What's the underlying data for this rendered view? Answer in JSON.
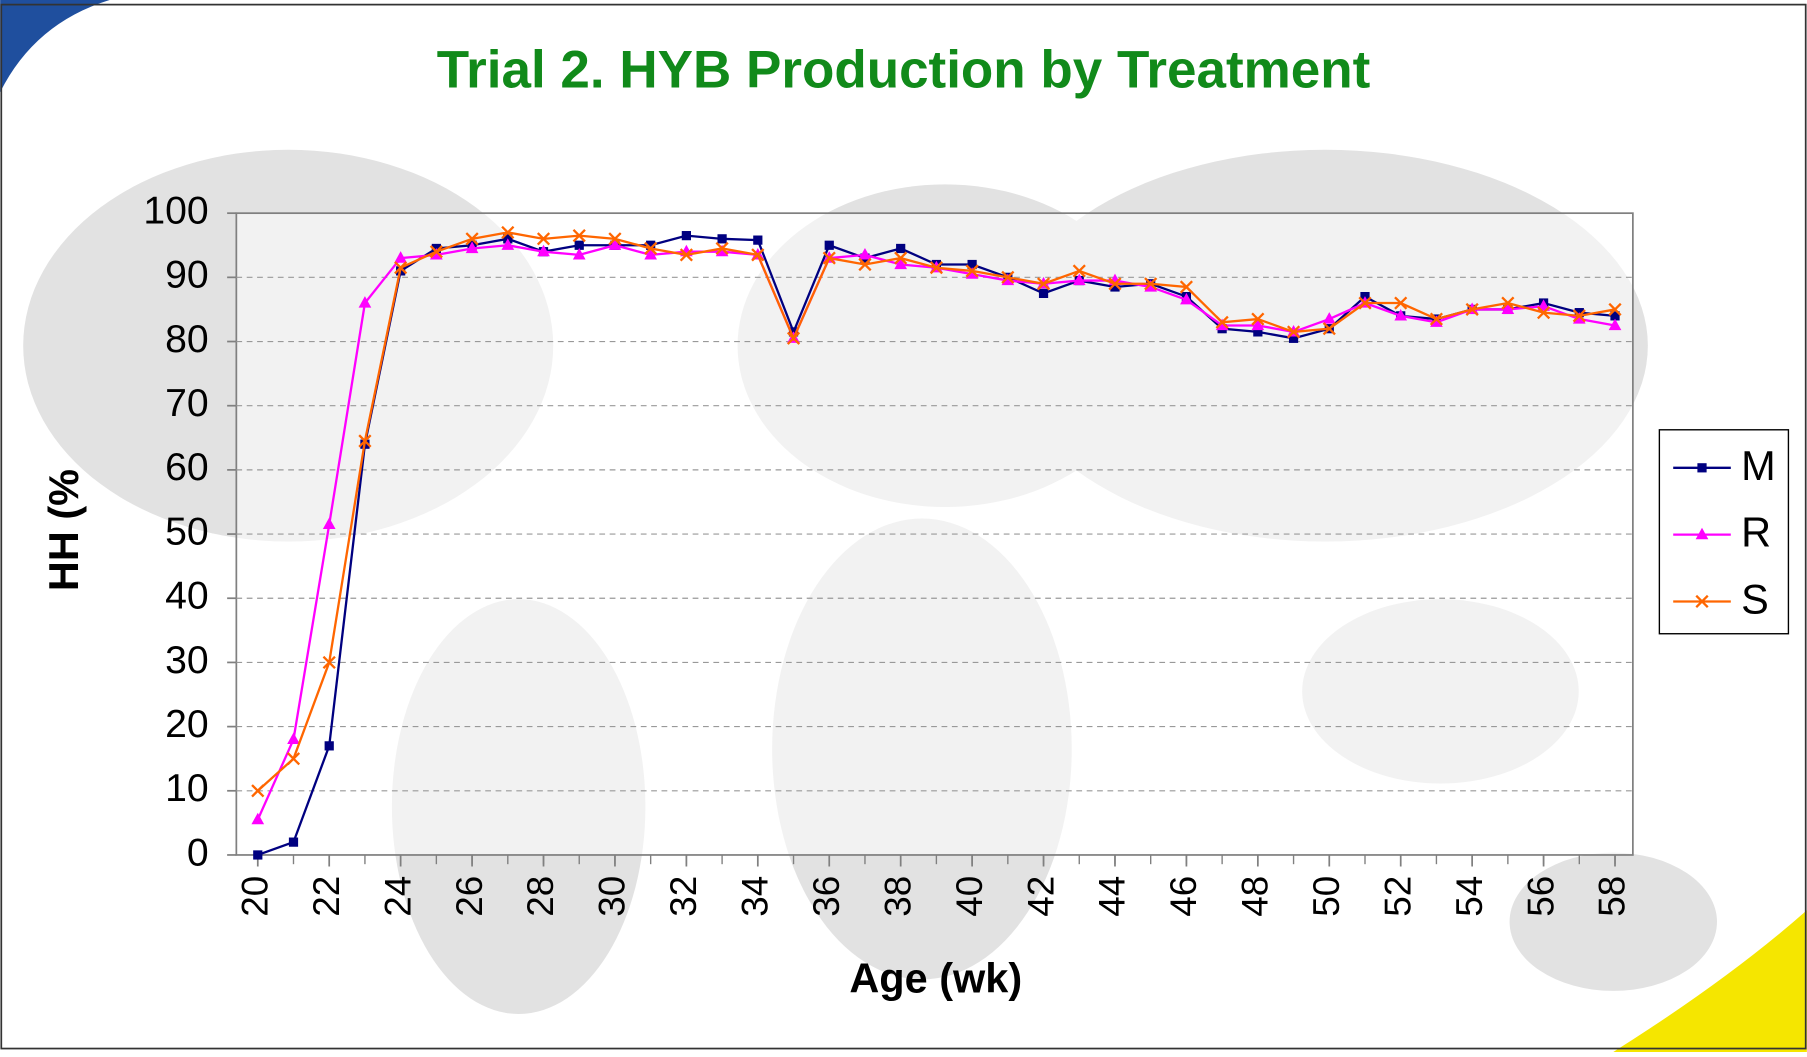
{
  "chart_data": {
    "type": "line",
    "title": "Trial 2. HYB Production by Treatment",
    "x_label": "Age (wk)",
    "y_label": "HH (%",
    "x": [
      20,
      21,
      22,
      23,
      24,
      25,
      26,
      27,
      28,
      29,
      30,
      31,
      32,
      33,
      34,
      35,
      36,
      37,
      38,
      39,
      40,
      41,
      42,
      43,
      44,
      45,
      46,
      47,
      48,
      49,
      50,
      51,
      52,
      53,
      54,
      55,
      56,
      57,
      58
    ],
    "series": [
      {
        "name": "M",
        "color": "#000080",
        "marker": "square",
        "values": [
          0,
          2,
          17,
          64,
          91,
          94.5,
          95,
          96,
          94,
          95,
          95,
          95,
          96.5,
          96,
          95.8,
          81.5,
          95,
          93,
          94.5,
          92,
          92,
          90,
          87.5,
          89.5,
          88.5,
          89,
          87,
          82,
          81.5,
          80.5,
          82,
          87,
          84,
          83.5,
          85,
          85,
          86,
          84.5,
          84
        ]
      },
      {
        "name": "R",
        "color": "#ff00ff",
        "marker": "triangle",
        "values": [
          5.5,
          18,
          51.5,
          86,
          93,
          93.5,
          94.5,
          95,
          94,
          93.5,
          95,
          93.5,
          94,
          94,
          93.5,
          80.5,
          93,
          93.5,
          92,
          91.5,
          90.5,
          89.5,
          89,
          89.5,
          89.5,
          88.5,
          86.5,
          82.5,
          82.5,
          81.5,
          83.5,
          86,
          84,
          83,
          85,
          85,
          85.5,
          83.5,
          82.5
        ]
      },
      {
        "name": "S",
        "color": "#ff6600",
        "marker": "x",
        "values": [
          10,
          15,
          30,
          64.5,
          91.5,
          94,
          96,
          97,
          96,
          96.5,
          96,
          94.5,
          93.5,
          94.5,
          93.5,
          80.5,
          93,
          92,
          93,
          91.5,
          91,
          90,
          89,
          91,
          89,
          89,
          88.5,
          83,
          83.5,
          81.5,
          82,
          86,
          86,
          83.5,
          85,
          86,
          84.5,
          84,
          85
        ]
      }
    ],
    "xlim": [
      19.4,
      58.5
    ],
    "xticks": [
      20,
      22,
      24,
      26,
      28,
      30,
      32,
      34,
      36,
      38,
      40,
      42,
      44,
      46,
      48,
      50,
      52,
      54,
      56,
      58
    ],
    "ylim": [
      0,
      100
    ],
    "yticks": [
      0,
      10,
      20,
      30,
      40,
      50,
      60,
      70,
      80,
      90,
      100
    ],
    "grid": true,
    "legend": "right"
  }
}
